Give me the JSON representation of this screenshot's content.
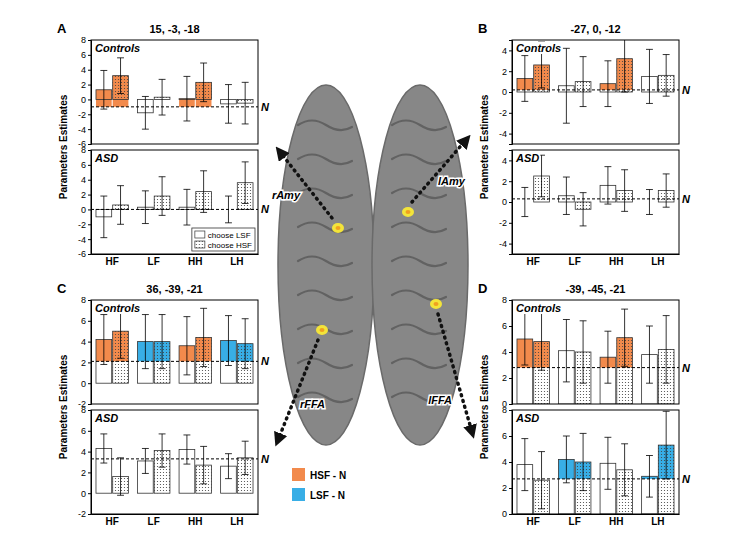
{
  "chart_data": [
    {
      "type": "bar",
      "title": "Controls",
      "categories": [
        "HF",
        "LF",
        "HH",
        "LH"
      ],
      "ylim": [
        -6,
        8
      ],
      "yticks": [
        -6,
        -4,
        -2,
        0,
        2,
        4,
        6,
        8
      ],
      "tick_labels": "y",
      "reference": {
        "label": "N",
        "value": -1
      },
      "series": [
        {
          "marker": "none",
          "values": [
            1.3,
            -1.8,
            0.1,
            -0.6
          ],
          "error": [
            2.6,
            2.2,
            3.0,
            2.6
          ],
          "colors": [
            "#f28a4c",
            "#ffffff",
            "#f28a4c",
            "#ffffff"
          ]
        },
        {
          "marker": "dotted",
          "values": [
            3.2,
            0.3,
            2.3,
            -0.5
          ],
          "error": [
            2.4,
            2.4,
            2.6,
            2.8
          ],
          "colors": [
            "#f28a4c",
            "#ffffff",
            "#f28a4c",
            "#ffffff"
          ]
        }
      ]
    },
    {
      "type": "bar",
      "title": "ASD",
      "categories": [
        "HF",
        "LF",
        "HH",
        "LH"
      ],
      "ylim": [
        -6,
        8
      ],
      "yticks": [
        -6,
        -4,
        -2,
        0,
        2,
        4,
        6,
        8
      ],
      "legend": "bottom right",
      "reference": {
        "label": "N",
        "value": 0
      },
      "series": [
        {
          "name": "choose LSF",
          "marker": "none",
          "values": [
            -1.0,
            0.3,
            0.3,
            0.0
          ],
          "error": [
            2.8,
            2.2,
            2.4,
            1.8
          ],
          "colors": [
            "#ffffff",
            "#ffffff",
            "#ffffff",
            "#ffffff"
          ]
        },
        {
          "name": "choose HSF",
          "marker": "dotted",
          "values": [
            0.6,
            1.8,
            2.4,
            3.6
          ],
          "error": [
            2.6,
            2.6,
            2.8,
            2.8
          ],
          "colors": [
            "#ffffff",
            "#ffffff",
            "#ffffff",
            "#ffffff"
          ]
        }
      ]
    },
    {
      "type": "bar",
      "title": "Controls",
      "categories": [
        "HF",
        "LF",
        "HH",
        "LH"
      ],
      "ylim": [
        -5,
        5
      ],
      "yticks": [
        -4,
        -2,
        0,
        2,
        4
      ],
      "tick_labels": "y",
      "reference": {
        "label": "N",
        "value": 0.2
      },
      "series": [
        {
          "marker": "none",
          "values": [
            1.3,
            0.6,
            0.8,
            1.5
          ],
          "error": [
            2.2,
            3.6,
            2.2,
            2.6
          ],
          "colors": [
            "#f28a4c",
            "#ffffff",
            "#f28a4c",
            "#ffffff"
          ]
        },
        {
          "marker": "dotted",
          "values": [
            2.6,
            1.0,
            3.2,
            1.6
          ],
          "error": [
            2.2,
            2.4,
            3.2,
            2.0
          ],
          "colors": [
            "#f28a4c",
            "#ffffff",
            "#f28a4c",
            "#ffffff"
          ]
        }
      ]
    },
    {
      "type": "bar",
      "title": "ASD",
      "categories": [
        "HF",
        "LF",
        "HH",
        "LH"
      ],
      "ylim": [
        -5,
        5
      ],
      "yticks": [
        -4,
        -2,
        0,
        2,
        4
      ],
      "reference": {
        "label": "N",
        "value": 0.3
      },
      "series": [
        {
          "marker": "none",
          "values": [
            0.0,
            0.6,
            1.6,
            0.0
          ],
          "error": [
            1.4,
            1.8,
            1.8,
            1.2
          ],
          "colors": [
            "#ffffff",
            "#ffffff",
            "#ffffff",
            "#ffffff"
          ]
        },
        {
          "marker": "dotted",
          "values": [
            2.5,
            -0.7,
            1.1,
            1.1
          ],
          "error": [
            2.0,
            1.6,
            2.0,
            1.6
          ],
          "colors": [
            "#ffffff",
            "#ffffff",
            "#ffffff",
            "#ffffff"
          ]
        }
      ]
    },
    {
      "type": "bar",
      "title": "Controls",
      "categories": [
        "HF",
        "LF",
        "HH",
        "LH"
      ],
      "ylim": [
        -2,
        8
      ],
      "yticks": [
        -2,
        0,
        2,
        4,
        6,
        8
      ],
      "tick_labels": "y",
      "reference": {
        "label": "N",
        "value": 2.1
      },
      "series": [
        {
          "marker": "none",
          "values": [
            4.2,
            4.0,
            3.6,
            4.1
          ],
          "error": [
            2.4,
            2.6,
            2.8,
            2.4
          ],
          "colors": [
            "#f28a4c",
            "#38aee6",
            "#f28a4c",
            "#38aee6"
          ]
        },
        {
          "marker": "dotted",
          "values": [
            5.0,
            4.0,
            4.4,
            3.8
          ],
          "error": [
            2.6,
            2.6,
            2.8,
            2.4
          ],
          "colors": [
            "#f28a4c",
            "#38aee6",
            "#f28a4c",
            "#38aee6"
          ]
        }
      ]
    },
    {
      "type": "bar",
      "title": "ASD",
      "categories": [
        "HF",
        "LF",
        "HH",
        "LH"
      ],
      "ylim": [
        -2,
        8
      ],
      "yticks": [
        -2,
        0,
        2,
        4,
        6,
        8
      ],
      "reference": {
        "label": "N",
        "value": 3.3
      },
      "series": [
        {
          "marker": "none",
          "values": [
            4.3,
            3.1,
            4.2,
            2.6
          ],
          "error": [
            1.4,
            1.2,
            1.4,
            1.2
          ],
          "colors": [
            "#ffffff",
            "#ffffff",
            "#ffffff",
            "#ffffff"
          ]
        },
        {
          "marker": "dotted",
          "values": [
            1.6,
            4.1,
            2.7,
            3.4
          ],
          "error": [
            1.8,
            1.6,
            1.8,
            1.6
          ],
          "colors": [
            "#ffffff",
            "#ffffff",
            "#ffffff",
            "#ffffff"
          ]
        }
      ]
    },
    {
      "type": "bar",
      "title": "Controls",
      "categories": [
        "HF",
        "LF",
        "HH",
        "LH"
      ],
      "ylim": [
        0,
        8
      ],
      "yticks": [
        0,
        2,
        4,
        6,
        8
      ],
      "tick_labels": "y",
      "reference": {
        "label": "N",
        "value": 2.8
      },
      "series": [
        {
          "marker": "none",
          "values": [
            5.0,
            4.1,
            3.6,
            3.8
          ],
          "error": [
            2.0,
            2.4,
            2.0,
            2.2
          ],
          "colors": [
            "#f28a4c",
            "#ffffff",
            "#f28a4c",
            "#ffffff"
          ]
        },
        {
          "marker": "dotted",
          "values": [
            4.8,
            4.0,
            5.1,
            4.2
          ],
          "error": [
            2.2,
            2.4,
            2.2,
            2.6
          ],
          "colors": [
            "#f28a4c",
            "#ffffff",
            "#f28a4c",
            "#ffffff"
          ]
        }
      ]
    },
    {
      "type": "bar",
      "title": "ASD",
      "categories": [
        "HF",
        "LF",
        "HH",
        "LH"
      ],
      "ylim": [
        0,
        8
      ],
      "yticks": [
        0,
        2,
        4,
        6,
        8
      ],
      "reference": {
        "label": "N",
        "value": 2.7
      },
      "series": [
        {
          "marker": "none",
          "values": [
            3.8,
            4.2,
            3.9,
            2.9
          ],
          "error": [
            2.0,
            1.8,
            2.0,
            1.6
          ],
          "colors": [
            "#ffffff",
            "#38aee6",
            "#ffffff",
            "#38aee6"
          ]
        },
        {
          "marker": "dotted",
          "values": [
            2.6,
            4.0,
            3.4,
            5.3
          ],
          "error": [
            2.2,
            2.2,
            2.0,
            2.6
          ],
          "colors": [
            "#ffffff",
            "#38aee6",
            "#ffffff",
            "#38aee6"
          ]
        }
      ]
    }
  ],
  "panels": [
    {
      "letter": "A",
      "title": "15, -3, -18",
      "region": "rAmy",
      "ylabel": "Parameters Estimates"
    },
    {
      "letter": "B",
      "title": "-27, 0, -12",
      "region": "lAmy",
      "ylabel": "Parameters Estimates"
    },
    {
      "letter": "C",
      "title": "36, -39, -21",
      "region": "rFFA",
      "ylabel": "Parameters Estimates"
    },
    {
      "letter": "D",
      "title": "-39, -45, -21",
      "region": "lFFA",
      "ylabel": "Parameters Estimates"
    }
  ],
  "color_key": [
    {
      "name": "HSF - N",
      "color": "#f28a4c"
    },
    {
      "name": "LSF - N",
      "color": "#38aee6"
    }
  ]
}
